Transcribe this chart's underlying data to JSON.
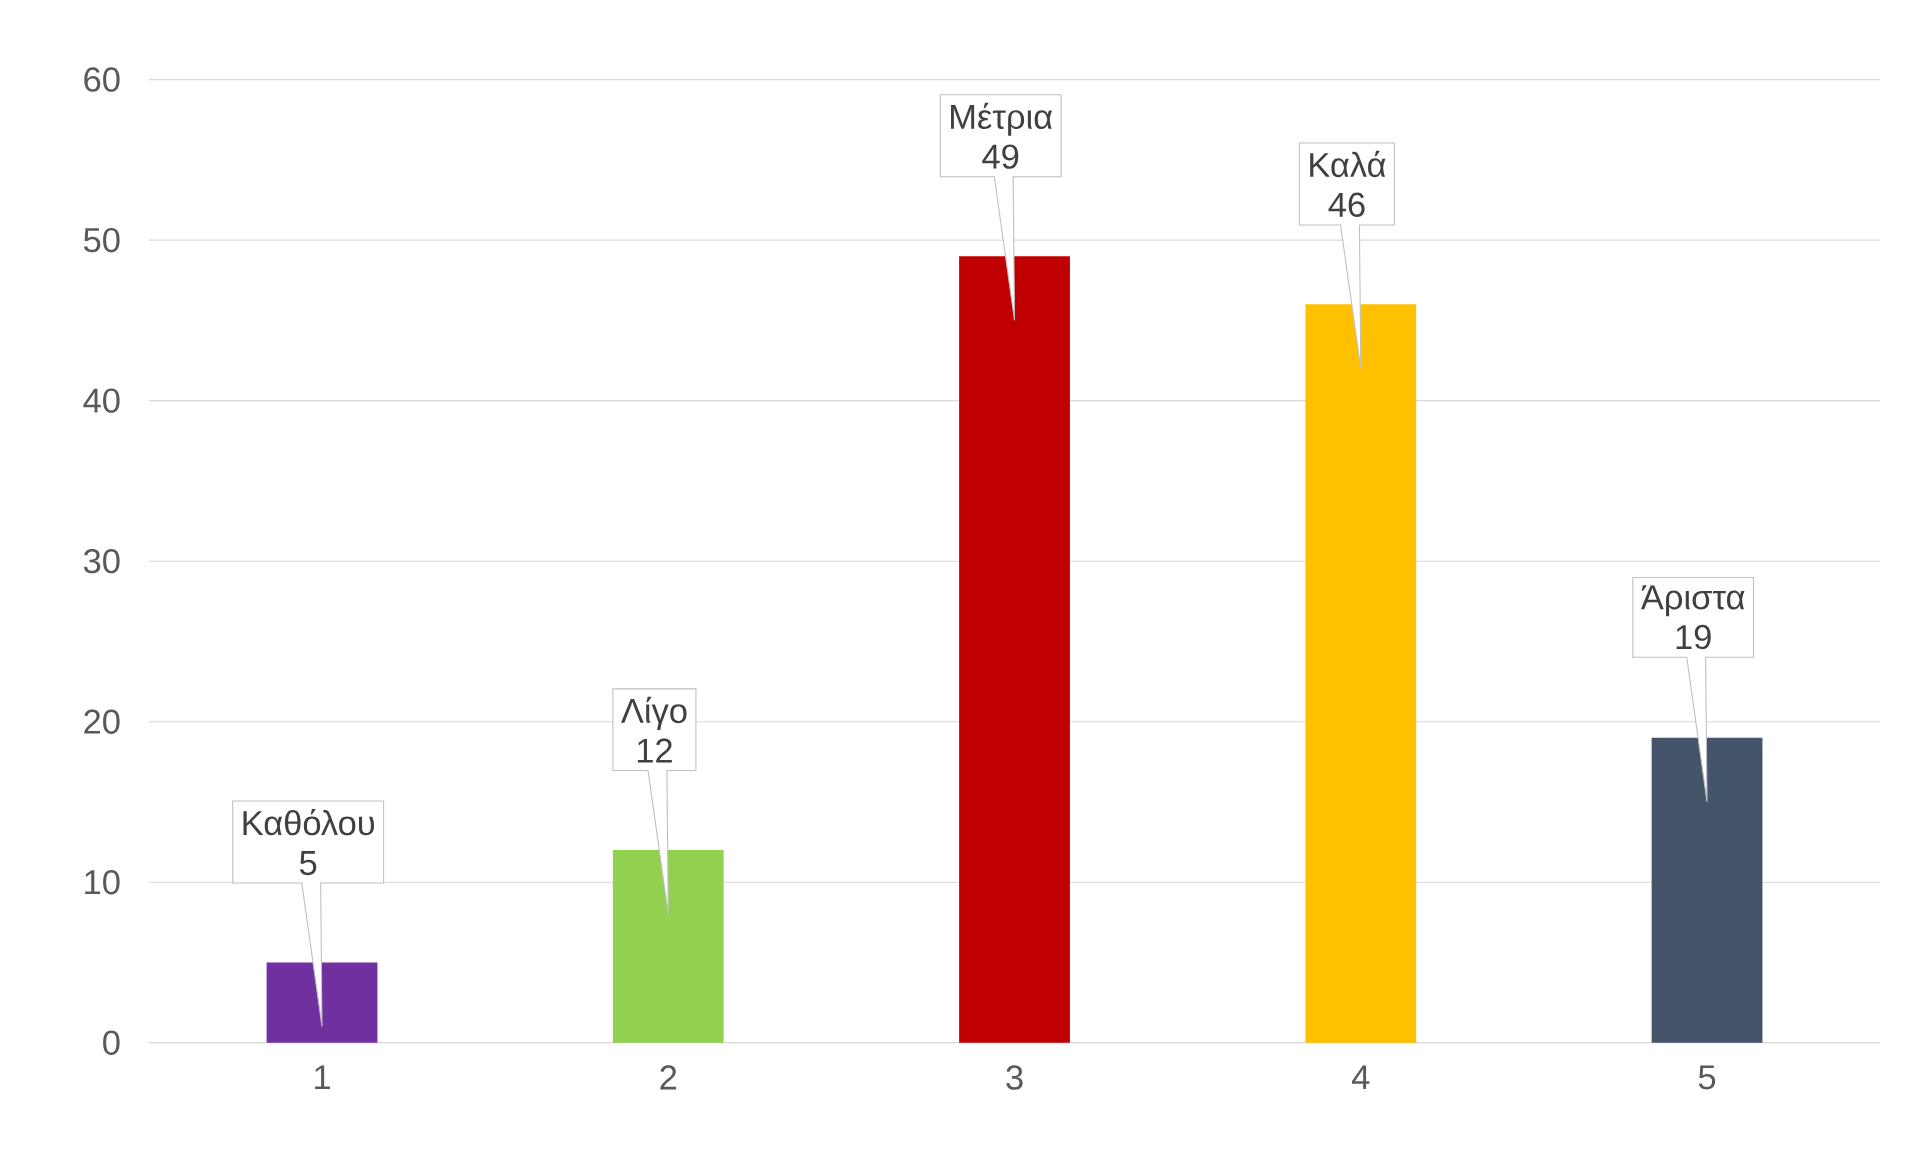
{
  "chart_data": {
    "type": "bar",
    "categories": [
      "1",
      "2",
      "3",
      "4",
      "5"
    ],
    "values": [
      5,
      12,
      49,
      46,
      19
    ],
    "colors": [
      "#7030a0",
      "#92d050",
      "#c00000",
      "#ffc000",
      "#44546a"
    ],
    "ylim": [
      0,
      60
    ],
    "yticks": [
      0,
      10,
      20,
      30,
      40,
      50,
      60
    ],
    "grid": "y",
    "data_labels": true,
    "annotations": [
      "Καθόλου",
      "Λίγο",
      "Μέτρια",
      "Καλά",
      "Άριστα"
    ]
  }
}
